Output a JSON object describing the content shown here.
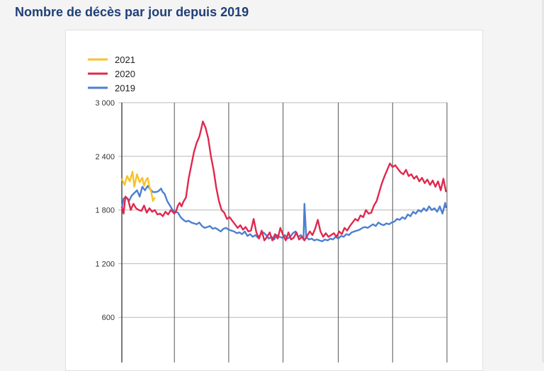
{
  "page": {
    "title": "Nombre de décès par jour depuis 2019"
  },
  "chart_data": {
    "type": "line",
    "title": "Nombre de décès par jour depuis 2019",
    "xlabel": "",
    "ylabel": "",
    "ylim": [
      0,
      3000
    ],
    "xlim": [
      1,
      366
    ],
    "x_unit": "day of year",
    "yticks": [
      {
        "value": 600,
        "label": "600"
      },
      {
        "value": 1200,
        "label": "1 200"
      },
      {
        "value": 1800,
        "label": "1 800"
      },
      {
        "value": 2400,
        "label": "2 400"
      },
      {
        "value": 3000,
        "label": "3 000"
      }
    ],
    "x_gridlines_day": [
      60,
      121,
      182,
      244,
      305
    ],
    "grid": true,
    "legend_position": "top-left",
    "series": [
      {
        "name": "2021",
        "color": "#f7c325",
        "points": [
          [
            1,
            2150
          ],
          [
            4,
            2080
          ],
          [
            7,
            2180
          ],
          [
            10,
            2120
          ],
          [
            13,
            2230
          ],
          [
            15,
            2060
          ],
          [
            18,
            2200
          ],
          [
            21,
            2110
          ],
          [
            24,
            2160
          ],
          [
            26,
            2070
          ],
          [
            28,
            2130
          ],
          [
            30,
            2160
          ],
          [
            32,
            2060
          ],
          [
            34,
            2000
          ],
          [
            36,
            1900
          ],
          [
            38,
            1940
          ]
        ]
      },
      {
        "name": "2020",
        "color": "#e0284f",
        "points": [
          [
            1,
            1840
          ],
          [
            3,
            1760
          ],
          [
            5,
            1950
          ],
          [
            8,
            1920
          ],
          [
            11,
            1800
          ],
          [
            14,
            1870
          ],
          [
            17,
            1820
          ],
          [
            20,
            1800
          ],
          [
            23,
            1790
          ],
          [
            26,
            1850
          ],
          [
            29,
            1770
          ],
          [
            32,
            1820
          ],
          [
            35,
            1780
          ],
          [
            38,
            1800
          ],
          [
            41,
            1750
          ],
          [
            44,
            1760
          ],
          [
            47,
            1730
          ],
          [
            50,
            1780
          ],
          [
            53,
            1750
          ],
          [
            56,
            1800
          ],
          [
            58,
            1780
          ],
          [
            60,
            1760
          ],
          [
            62,
            1790
          ],
          [
            64,
            1850
          ],
          [
            66,
            1880
          ],
          [
            68,
            1840
          ],
          [
            70,
            1890
          ],
          [
            73,
            1940
          ],
          [
            76,
            2150
          ],
          [
            79,
            2300
          ],
          [
            82,
            2450
          ],
          [
            85,
            2550
          ],
          [
            88,
            2620
          ],
          [
            90,
            2700
          ],
          [
            92,
            2790
          ],
          [
            95,
            2720
          ],
          [
            98,
            2600
          ],
          [
            101,
            2400
          ],
          [
            104,
            2250
          ],
          [
            107,
            2050
          ],
          [
            110,
            1900
          ],
          [
            113,
            1800
          ],
          [
            116,
            1770
          ],
          [
            119,
            1700
          ],
          [
            122,
            1720
          ],
          [
            125,
            1680
          ],
          [
            128,
            1640
          ],
          [
            131,
            1600
          ],
          [
            134,
            1630
          ],
          [
            137,
            1580
          ],
          [
            140,
            1610
          ],
          [
            143,
            1560
          ],
          [
            146,
            1570
          ],
          [
            149,
            1700
          ],
          [
            152,
            1550
          ],
          [
            155,
            1480
          ],
          [
            158,
            1570
          ],
          [
            161,
            1460
          ],
          [
            164,
            1500
          ],
          [
            167,
            1550
          ],
          [
            170,
            1460
          ],
          [
            173,
            1530
          ],
          [
            176,
            1480
          ],
          [
            179,
            1600
          ],
          [
            182,
            1520
          ],
          [
            185,
            1460
          ],
          [
            188,
            1550
          ],
          [
            191,
            1470
          ],
          [
            194,
            1490
          ],
          [
            197,
            1550
          ],
          [
            200,
            1470
          ],
          [
            203,
            1500
          ],
          [
            206,
            1460
          ],
          [
            209,
            1510
          ],
          [
            212,
            1560
          ],
          [
            215,
            1520
          ],
          [
            218,
            1590
          ],
          [
            221,
            1690
          ],
          [
            224,
            1560
          ],
          [
            227,
            1500
          ],
          [
            230,
            1540
          ],
          [
            233,
            1500
          ],
          [
            236,
            1520
          ],
          [
            239,
            1540
          ],
          [
            242,
            1500
          ],
          [
            245,
            1560
          ],
          [
            248,
            1530
          ],
          [
            251,
            1600
          ],
          [
            254,
            1570
          ],
          [
            257,
            1620
          ],
          [
            260,
            1660
          ],
          [
            263,
            1700
          ],
          [
            266,
            1680
          ],
          [
            269,
            1740
          ],
          [
            272,
            1720
          ],
          [
            275,
            1800
          ],
          [
            278,
            1760
          ],
          [
            281,
            1770
          ],
          [
            284,
            1850
          ],
          [
            287,
            1900
          ],
          [
            290,
            2000
          ],
          [
            293,
            2100
          ],
          [
            296,
            2180
          ],
          [
            299,
            2250
          ],
          [
            302,
            2320
          ],
          [
            305,
            2280
          ],
          [
            308,
            2300
          ],
          [
            311,
            2260
          ],
          [
            314,
            2220
          ],
          [
            317,
            2200
          ],
          [
            320,
            2250
          ],
          [
            323,
            2180
          ],
          [
            326,
            2200
          ],
          [
            329,
            2150
          ],
          [
            332,
            2180
          ],
          [
            335,
            2120
          ],
          [
            338,
            2160
          ],
          [
            341,
            2100
          ],
          [
            344,
            2140
          ],
          [
            347,
            2080
          ],
          [
            350,
            2130
          ],
          [
            353,
            2060
          ],
          [
            356,
            2120
          ],
          [
            359,
            2020
          ],
          [
            362,
            2150
          ],
          [
            365,
            2000
          ]
        ]
      },
      {
        "name": "2019",
        "color": "#4c7fd1",
        "points": [
          [
            1,
            1820
          ],
          [
            3,
            1930
          ],
          [
            6,
            1940
          ],
          [
            9,
            1900
          ],
          [
            12,
            1960
          ],
          [
            15,
            1990
          ],
          [
            18,
            2020
          ],
          [
            21,
            1950
          ],
          [
            24,
            2060
          ],
          [
            27,
            2020
          ],
          [
            30,
            2070
          ],
          [
            33,
            2030
          ],
          [
            36,
            2000
          ],
          [
            39,
            2000
          ],
          [
            42,
            2010
          ],
          [
            45,
            2040
          ],
          [
            47,
            2000
          ],
          [
            49,
            1980
          ],
          [
            52,
            1900
          ],
          [
            55,
            1850
          ],
          [
            58,
            1800
          ],
          [
            61,
            1780
          ],
          [
            64,
            1770
          ],
          [
            67,
            1720
          ],
          [
            70,
            1690
          ],
          [
            73,
            1670
          ],
          [
            76,
            1680
          ],
          [
            79,
            1660
          ],
          [
            82,
            1650
          ],
          [
            85,
            1640
          ],
          [
            88,
            1660
          ],
          [
            91,
            1620
          ],
          [
            94,
            1600
          ],
          [
            97,
            1610
          ],
          [
            100,
            1620
          ],
          [
            103,
            1590
          ],
          [
            106,
            1600
          ],
          [
            109,
            1580
          ],
          [
            112,
            1560
          ],
          [
            115,
            1590
          ],
          [
            118,
            1600
          ],
          [
            121,
            1580
          ],
          [
            124,
            1570
          ],
          [
            127,
            1560
          ],
          [
            130,
            1540
          ],
          [
            133,
            1550
          ],
          [
            136,
            1530
          ],
          [
            139,
            1560
          ],
          [
            142,
            1510
          ],
          [
            145,
            1530
          ],
          [
            148,
            1500
          ],
          [
            151,
            1520
          ],
          [
            154,
            1490
          ],
          [
            157,
            1530
          ],
          [
            160,
            1550
          ],
          [
            163,
            1520
          ],
          [
            166,
            1480
          ],
          [
            169,
            1500
          ],
          [
            172,
            1470
          ],
          [
            175,
            1520
          ],
          [
            178,
            1500
          ],
          [
            181,
            1490
          ],
          [
            184,
            1520
          ],
          [
            187,
            1480
          ],
          [
            190,
            1500
          ],
          [
            193,
            1540
          ],
          [
            196,
            1560
          ],
          [
            199,
            1500
          ],
          [
            202,
            1520
          ],
          [
            205,
            1480
          ],
          [
            206,
            1870
          ],
          [
            208,
            1500
          ],
          [
            211,
            1470
          ],
          [
            214,
            1480
          ],
          [
            217,
            1460
          ],
          [
            220,
            1470
          ],
          [
            223,
            1460
          ],
          [
            226,
            1450
          ],
          [
            229,
            1470
          ],
          [
            232,
            1460
          ],
          [
            235,
            1480
          ],
          [
            238,
            1470
          ],
          [
            241,
            1500
          ],
          [
            244,
            1480
          ],
          [
            247,
            1510
          ],
          [
            250,
            1500
          ],
          [
            253,
            1530
          ],
          [
            256,
            1520
          ],
          [
            259,
            1550
          ],
          [
            262,
            1560
          ],
          [
            265,
            1570
          ],
          [
            268,
            1580
          ],
          [
            271,
            1600
          ],
          [
            274,
            1610
          ],
          [
            277,
            1600
          ],
          [
            280,
            1620
          ],
          [
            283,
            1640
          ],
          [
            286,
            1620
          ],
          [
            289,
            1660
          ],
          [
            292,
            1640
          ],
          [
            295,
            1630
          ],
          [
            298,
            1650
          ],
          [
            301,
            1640
          ],
          [
            304,
            1660
          ],
          [
            307,
            1670
          ],
          [
            310,
            1700
          ],
          [
            313,
            1690
          ],
          [
            316,
            1720
          ],
          [
            319,
            1700
          ],
          [
            322,
            1750
          ],
          [
            325,
            1730
          ],
          [
            328,
            1780
          ],
          [
            331,
            1760
          ],
          [
            334,
            1800
          ],
          [
            337,
            1780
          ],
          [
            340,
            1820
          ],
          [
            343,
            1790
          ],
          [
            346,
            1840
          ],
          [
            349,
            1800
          ],
          [
            352,
            1820
          ],
          [
            355,
            1780
          ],
          [
            358,
            1840
          ],
          [
            361,
            1760
          ],
          [
            364,
            1880
          ],
          [
            365,
            1820
          ]
        ]
      }
    ]
  }
}
